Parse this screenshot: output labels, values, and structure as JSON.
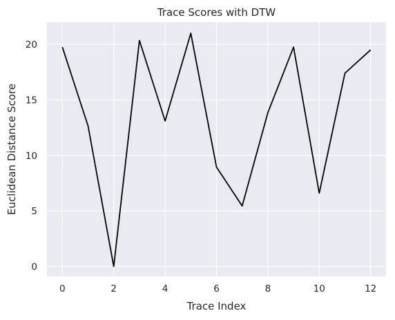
{
  "chart_data": {
    "type": "line",
    "title": "Trace Scores with DTW",
    "xlabel": "Trace Index",
    "ylabel": "Euclidean Distance Score",
    "x": [
      0,
      1,
      2,
      3,
      4,
      5,
      6,
      7,
      8,
      9,
      10,
      11,
      12
    ],
    "series": [
      {
        "values": [
          19.75,
          12.65,
          0.0,
          20.35,
          13.1,
          21.0,
          8.95,
          5.45,
          13.85,
          19.75,
          6.6,
          17.4,
          19.5
        ],
        "color": "#000000"
      }
    ],
    "xlim": [
      -0.6,
      12.6
    ],
    "ylim": [
      -0.9,
      22.0
    ],
    "xticks": [
      0,
      2,
      4,
      6,
      8,
      10,
      12
    ],
    "yticks": [
      0,
      5,
      10,
      15,
      20
    ],
    "grid": true,
    "background_color": "#eaeaf2",
    "grid_color": "#ffffff"
  }
}
